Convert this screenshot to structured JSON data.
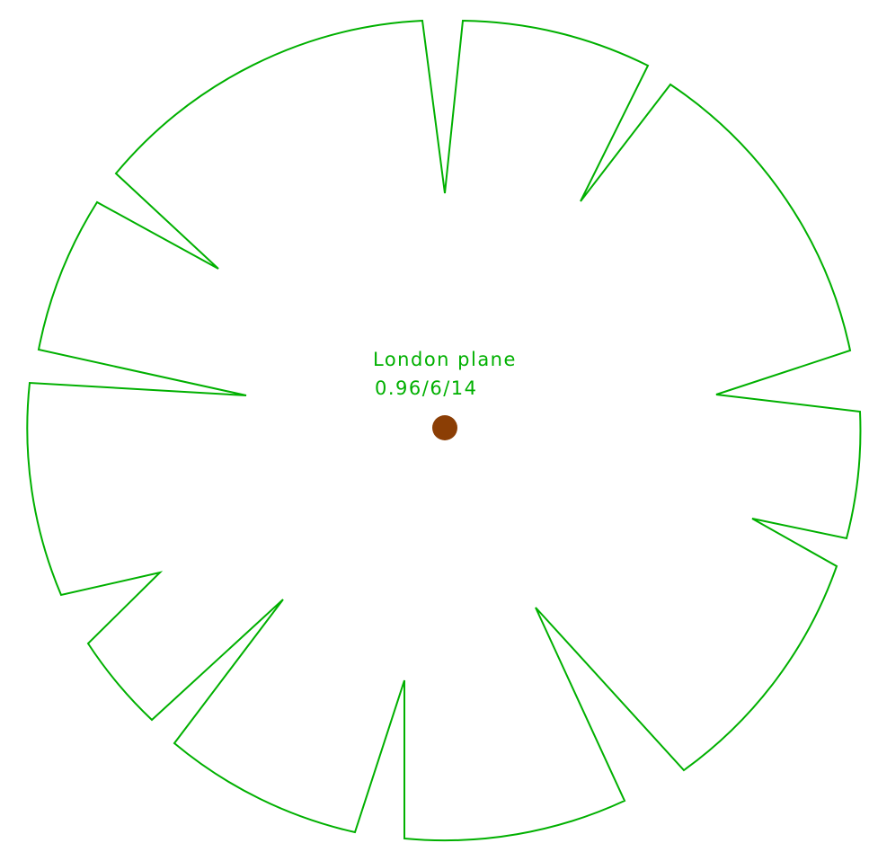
{
  "tree": {
    "species": "London plane",
    "dimensions": "0.96/6/14"
  },
  "colors": {
    "outline": "#00b000",
    "label": "#00b000",
    "trunk": "#8b3e05"
  },
  "icons": {
    "trunk": "trunk-dot-icon"
  }
}
